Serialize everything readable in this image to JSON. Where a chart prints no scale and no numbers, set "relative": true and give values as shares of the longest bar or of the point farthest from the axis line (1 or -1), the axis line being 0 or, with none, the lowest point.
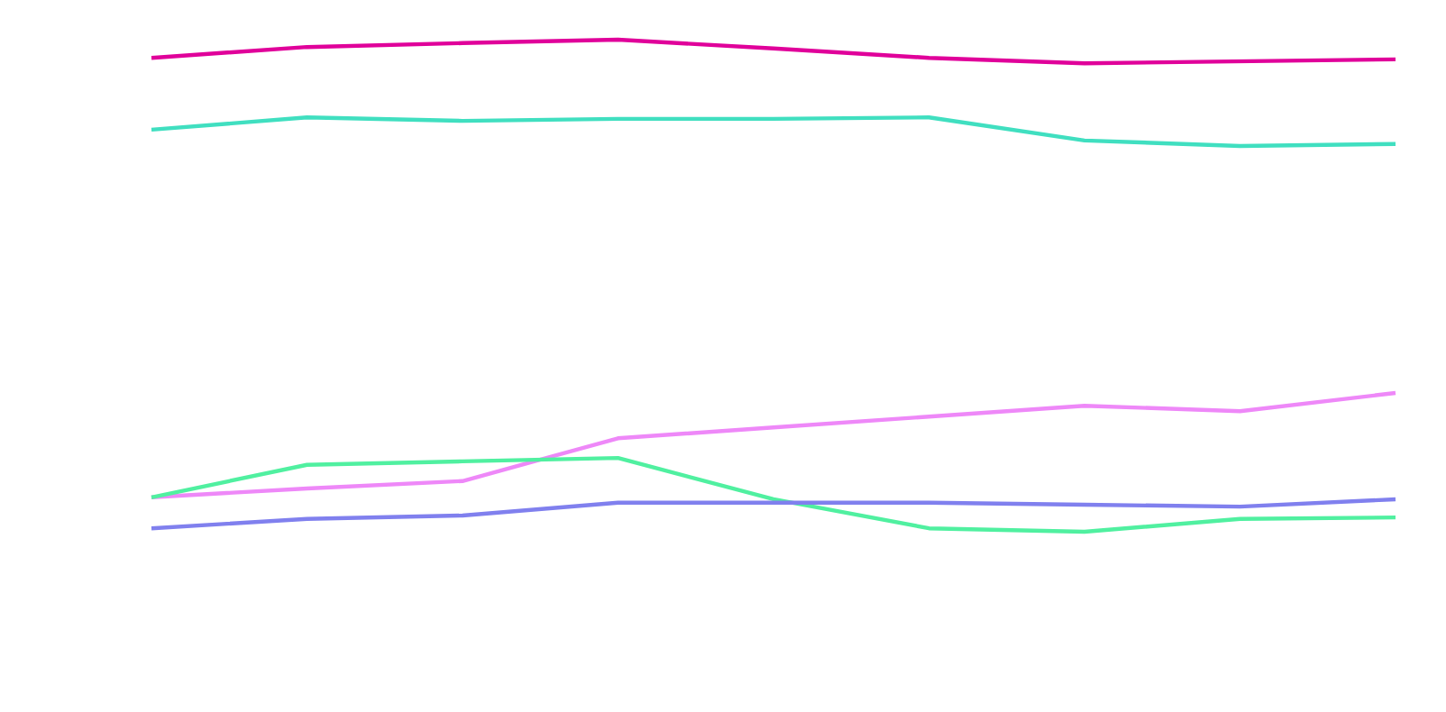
{
  "chart_data": {
    "type": "line",
    "relative": true,
    "categories": [
      null,
      null,
      null,
      null,
      null,
      null,
      null,
      null,
      null
    ],
    "series": [
      {
        "color": "#e0009a",
        "values": [
          0.963,
          0.985,
          0.993,
          1,
          0.982,
          0.963,
          0.952,
          0.956,
          0.96
        ]
      },
      {
        "color": "#40dfc0",
        "values": [
          0.817,
          0.842,
          0.835,
          0.839,
          0.839,
          0.842,
          0.795,
          0.784,
          0.788
        ]
      },
      {
        "color": "#ee88f8",
        "values": [
          0.07,
          0.088,
          0.103,
          0.19,
          0.212,
          0.234,
          0.256,
          0.245,
          0.282
        ]
      },
      {
        "color": "#50f0a0",
        "values": [
          0.07,
          0.136,
          0.143,
          0.15,
          0.066,
          0.007,
          0,
          0.026,
          0.029
        ]
      },
      {
        "color": "#8080ee",
        "values": [
          0.007,
          0.026,
          0.033,
          0.059,
          0.059,
          0.059,
          0.055,
          0.051,
          0.066
        ]
      }
    ]
  }
}
